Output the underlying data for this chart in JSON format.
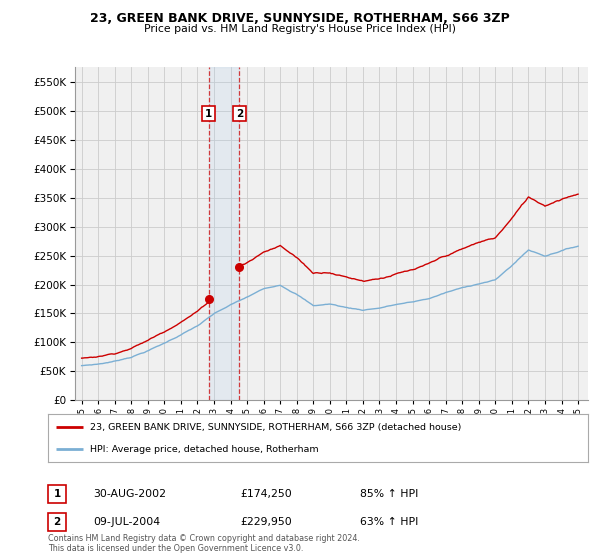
{
  "title": "23, GREEN BANK DRIVE, SUNNYSIDE, ROTHERHAM, S66 3ZP",
  "subtitle": "Price paid vs. HM Land Registry's House Price Index (HPI)",
  "legend_line1": "23, GREEN BANK DRIVE, SUNNYSIDE, ROTHERHAM, S66 3ZP (detached house)",
  "legend_line2": "HPI: Average price, detached house, Rotherham",
  "transaction1_date": "30-AUG-2002",
  "transaction1_price": "£174,250",
  "transaction1_hpi": "85% ↑ HPI",
  "transaction2_date": "09-JUL-2004",
  "transaction2_price": "£229,950",
  "transaction2_hpi": "63% ↑ HPI",
  "footnote": "Contains HM Land Registry data © Crown copyright and database right 2024.\nThis data is licensed under the Open Government Licence v3.0.",
  "red_color": "#cc0000",
  "blue_color": "#7bafd4",
  "marker1_year": 2002.67,
  "marker1_price": 174250,
  "marker2_year": 2004.54,
  "marker2_price": 229950,
  "ylim_max": 575000,
  "ylim_min": 0,
  "background_color": "#ffffff",
  "grid_color": "#cccccc",
  "plot_bg": "#f0f0f0"
}
